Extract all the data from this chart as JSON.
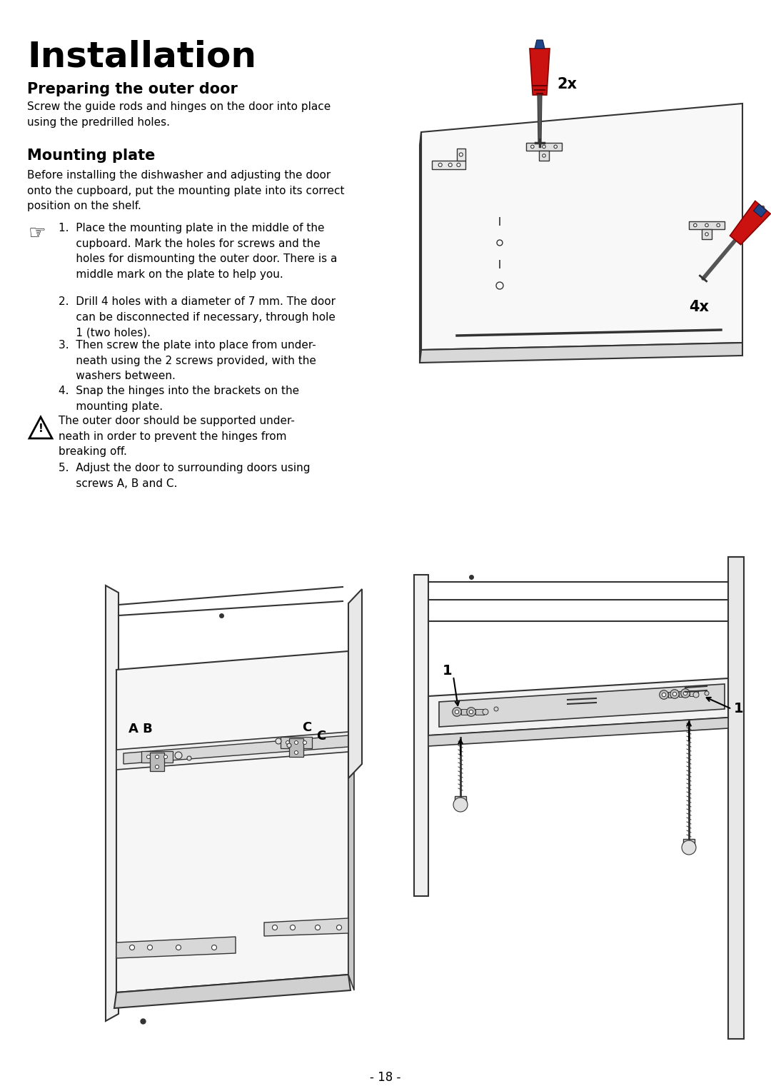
{
  "bg_color": "#ffffff",
  "title": "Installation",
  "section1_title": "Preparing the outer door",
  "section1_text": "Screw the guide rods and hinges on the door into place\nusing the predrilled holes.",
  "section2_title": "Mounting plate",
  "section2_intro": "Before installing the dishwasher and adjusting the door\nonto the cupboard, put the mounting plate into its correct\nposition on the shelf.",
  "step1": "1.  Place the mounting plate in the middle of the\n     cupboard. Mark the holes for screws and the\n     holes for dismounting the outer door. There is a\n     middle mark on the plate to help you.",
  "step2": "2.  Drill 4 holes with a diameter of 7 mm. The door\n     can be disconnected if necessary, through hole\n     1 (two holes).",
  "step3": "3.  Then screw the plate into place from under-\n     neath using the 2 screws provided, with the\n     washers between.",
  "step4": "4.  Snap the hinges into the brackets on the\n     mounting plate.",
  "warning_text": "The outer door should be supported under-\nneath in order to prevent the hinges from\nbreaking off.",
  "step5": "5.  Adjust the door to surrounding doors using\n     screws A, B and C.",
  "page_number": "- 18 -",
  "text_color": "#000000",
  "label_2x": "2x",
  "label_4x": "4x",
  "label_1a": "1",
  "label_1b": "1",
  "label_AB": "A B",
  "label_C1": "C",
  "label_C2": "C"
}
